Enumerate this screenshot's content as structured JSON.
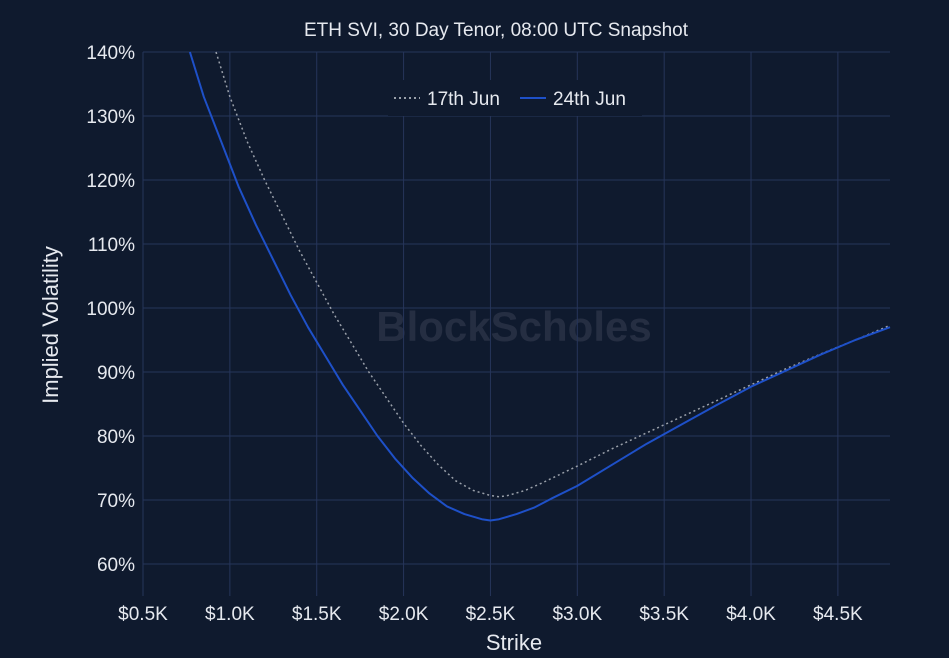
{
  "chart_data": {
    "type": "line",
    "title": "ETH SVI, 30 Day Tenor, 08:00 UTC Snapshot",
    "xlabel": "Strike",
    "ylabel": "Implied Volatility",
    "xlim": [
      500,
      4800
    ],
    "ylim": [
      55,
      140
    ],
    "x_ticks": [
      500,
      1000,
      1500,
      2000,
      2500,
      3000,
      3500,
      4000,
      4500
    ],
    "x_tick_labels": [
      "$0.5K",
      "$1.0K",
      "$1.5K",
      "$2.0K",
      "$2.5K",
      "$3.0K",
      "$3.5K",
      "$4.0K",
      "$4.5K"
    ],
    "y_ticks": [
      60,
      70,
      80,
      90,
      100,
      110,
      120,
      130,
      140
    ],
    "y_tick_labels": [
      "60%",
      "70%",
      "80%",
      "90%",
      "100%",
      "110%",
      "120%",
      "130%",
      "140%"
    ],
    "grid": true,
    "legend_position": "top-center",
    "watermark": "BlockScholes",
    "series": [
      {
        "name": "17th Jun",
        "color": "#9aa0aa",
        "style": "dotted",
        "x": [
          920,
          1000,
          1100,
          1200,
          1300,
          1400,
          1500,
          1600,
          1700,
          1800,
          1900,
          2000,
          2100,
          2200,
          2300,
          2400,
          2500,
          2550,
          2600,
          2700,
          2800,
          2900,
          3000,
          3200,
          3400,
          3600,
          3800,
          4000,
          4200,
          4400,
          4600,
          4800
        ],
        "y": [
          140,
          133,
          126,
          120,
          114.5,
          109,
          104,
          99,
          94.5,
          90,
          86,
          82,
          78.5,
          75.5,
          73,
          71.5,
          70.7,
          70.5,
          70.7,
          71.5,
          72.7,
          74,
          75.3,
          78,
          80.5,
          83,
          85.5,
          88,
          90.5,
          92.8,
          95,
          97.3
        ]
      },
      {
        "name": "24th Jun",
        "color": "#1e50c8",
        "style": "solid",
        "x": [
          770,
          850,
          950,
          1050,
          1150,
          1250,
          1350,
          1450,
          1550,
          1650,
          1750,
          1850,
          1950,
          2050,
          2150,
          2250,
          2350,
          2450,
          2500,
          2550,
          2650,
          2750,
          2850,
          3000,
          3200,
          3400,
          3600,
          3800,
          4000,
          4200,
          4400,
          4600,
          4800
        ],
        "y": [
          140,
          133,
          126,
          119,
          113,
          107.5,
          102,
          97,
          92.5,
          88,
          84,
          80,
          76.5,
          73.5,
          71,
          69,
          67.8,
          67,
          66.8,
          67,
          67.8,
          68.8,
          70.2,
          72.2,
          75.5,
          78.8,
          81.8,
          84.8,
          87.7,
          90.2,
          92.7,
          95,
          97
        ]
      }
    ]
  }
}
